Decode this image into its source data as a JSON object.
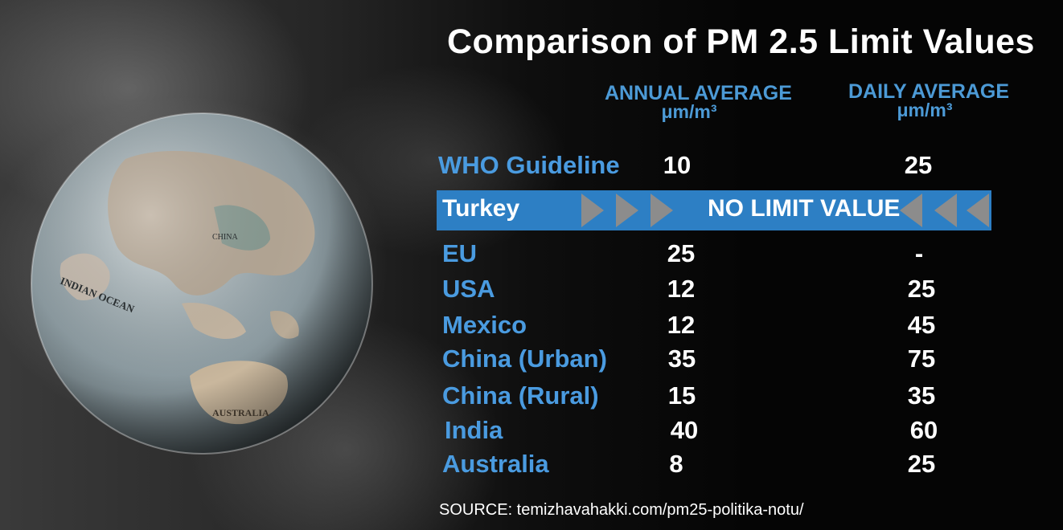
{
  "title": "Comparison of PM 2.5 Limit Values",
  "columns": {
    "annual": {
      "label": "ANNUAL AVERAGE",
      "unit": "μm/m³"
    },
    "daily": {
      "label": "DAILY AVERAGE",
      "unit": "μm/m³"
    }
  },
  "who": {
    "label": "WHO Guideline",
    "annual": "10",
    "daily": "25"
  },
  "turkey": {
    "label": "Turkey",
    "note": "NO LIMIT VALUE"
  },
  "rows": [
    {
      "label": "EU",
      "annual": "25",
      "daily": "-"
    },
    {
      "label": "USA",
      "annual": "12",
      "daily": "25"
    },
    {
      "label": "Mexico",
      "annual": "12",
      "daily": "45"
    },
    {
      "label": "China (Urban)",
      "annual": "35",
      "daily": "75"
    },
    {
      "label": "China (Rural)",
      "annual": "15",
      "daily": "35"
    },
    {
      "label": "India",
      "annual": "40",
      "daily": "60"
    },
    {
      "label": "Australia",
      "annual": "8",
      "daily": "25"
    }
  ],
  "globe_labels": {
    "ocean": "INDIAN OCEAN",
    "australia": "AUSTRALIA",
    "china": "CHINA"
  },
  "source": "SOURCE: temizhavahakki.com/pm25-politika-notu/",
  "colors": {
    "accent": "#4a9be0",
    "banner": "#2d7fc4",
    "text": "#ffffff",
    "background": "#070707"
  }
}
